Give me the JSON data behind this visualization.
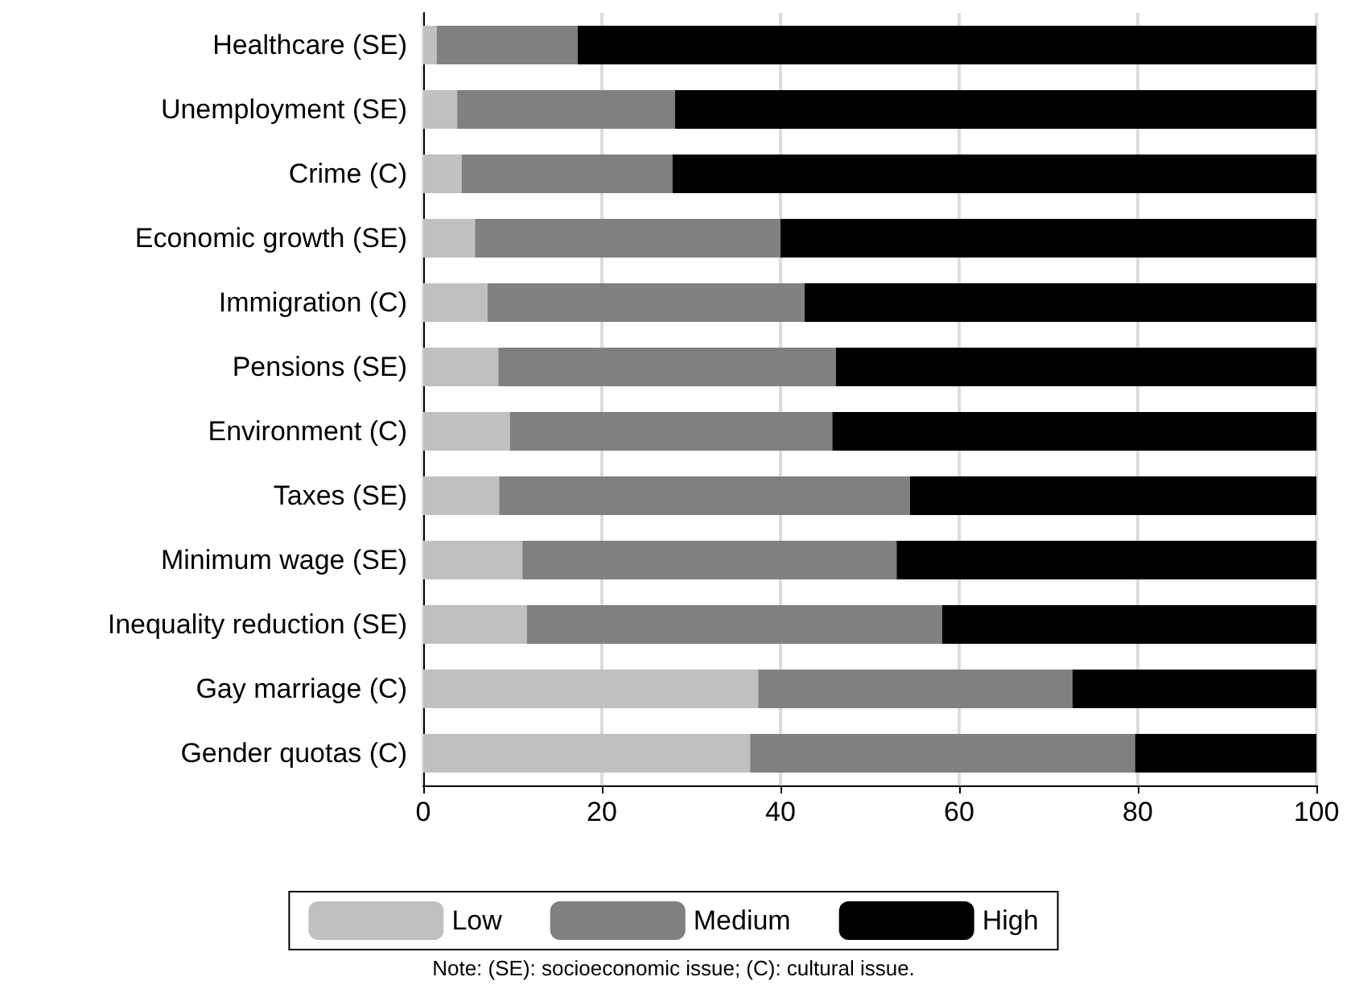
{
  "chart_data": {
    "type": "bar",
    "orientation": "horizontal",
    "stacked": true,
    "categories": [
      "Healthcare (SE)",
      "Unemployment (SE)",
      "Crime (C)",
      "Economic growth (SE)",
      "Immigration (C)",
      "Pensions (SE)",
      "Environment (C)",
      "Taxes (SE)",
      "Minimum wage (SE)",
      "Inequality reduction (SE)",
      "Gay marriage (C)",
      "Gender quotas (C)"
    ],
    "series": [
      {
        "name": "Low",
        "color": "#c0c0c0",
        "values": [
          1.5,
          3.8,
          4.3,
          5.8,
          7.2,
          8.4,
          9.7,
          8.5,
          11.1,
          11.6,
          37.5,
          36.6
        ]
      },
      {
        "name": "Medium",
        "color": "#808080",
        "values": [
          15.8,
          24.4,
          23.6,
          34.2,
          35.5,
          37.8,
          36.1,
          46.0,
          41.9,
          46.5,
          35.2,
          43.1
        ]
      },
      {
        "name": "High",
        "color": "#000000",
        "values": [
          82.7,
          71.8,
          72.1,
          60.0,
          57.3,
          53.8,
          54.2,
          45.5,
          47.0,
          41.9,
          27.3,
          20.3
        ]
      }
    ],
    "xlim": [
      0,
      100
    ],
    "xticks": [
      0,
      20,
      40,
      60,
      80,
      100
    ],
    "grid": "x",
    "legend": "bottom",
    "annotations": [
      "Note: (SE): socioeconomic issue; (C): cultural issue."
    ]
  }
}
